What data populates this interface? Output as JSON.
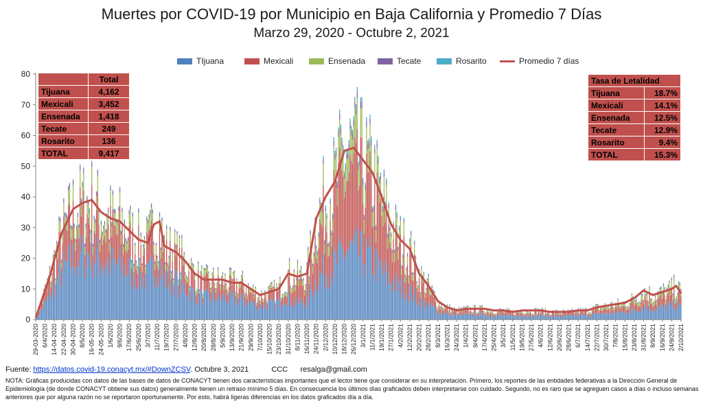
{
  "title": "Muertes por COVID-19 por Municipio en Baja California y Promedio 7 Días",
  "subtitle": "Marzo 29, 2020 - Octubre 2, 2021",
  "legend": [
    {
      "name": "TIjuana",
      "color": "#4f81bd",
      "kind": "bar"
    },
    {
      "name": "Mexicali",
      "color": "#c0504d",
      "kind": "bar"
    },
    {
      "name": "Ensenada",
      "color": "#9bbb59",
      "kind": "bar"
    },
    {
      "name": "Tecate",
      "color": "#8064a2",
      "kind": "bar"
    },
    {
      "name": "Rosarito",
      "color": "#4bacc6",
      "kind": "bar"
    },
    {
      "name": "Promedio 7 días",
      "color": "#c0504d",
      "kind": "line"
    }
  ],
  "totals_table": {
    "header": "Total",
    "rows": [
      {
        "label": "Tijuana",
        "value": "4,162"
      },
      {
        "label": "Mexicali",
        "value": "3,452"
      },
      {
        "label": "Ensenada",
        "value": "1,418"
      },
      {
        "label": "Tecate",
        "value": "249"
      },
      {
        "label": "Rosarito",
        "value": "136"
      },
      {
        "label": "TOTAL",
        "value": "9,417"
      }
    ]
  },
  "lethality_table": {
    "header": "Tasa de Letalidad",
    "rows": [
      {
        "label": "Tijuana",
        "value": "18.7%"
      },
      {
        "label": "Mexicali",
        "value": "14.1%"
      },
      {
        "label": "Ensenada",
        "value": "12.5%"
      },
      {
        "label": "Tecate",
        "value": "12.9%"
      },
      {
        "label": "Rosarito",
        "value": "9.4%"
      },
      {
        "label": "TOTAL",
        "value": "15.3%"
      }
    ]
  },
  "footer": {
    "source_label": "Fuente:",
    "source_link": "https://datos.covid-19.conacyt.mx/#DownZCSV",
    "source_date": ". Octubre 3, 2021",
    "credit": "CCC      resalga@gmail.com"
  },
  "notes": "NOTA: Gráficas producidas con datos de las bases de datos de CONACYT tienen dos características importantes que el lector tiene que considerar en su interpretación. Primero, los reportes de las entidades federativas a la Dirección General de Epidemiología (de donde CONACYT obtiene sus datos) generalmente tienen un retraso mínimo 5 días. En consecuencia los últimos días graficados deben interpretarse con cuidado. Segundo, no es raro que se agreguen casos a días o incluso semanas anteriores que por alguna razón no se reportaron oportunamente. Por esto, habrá ligeras diferencias en los datos graficados día a día.",
  "chart_data": {
    "type": "bar",
    "stacked": true,
    "ylim": [
      0,
      80
    ],
    "yticks": [
      0,
      10,
      20,
      30,
      40,
      50,
      60,
      70,
      80
    ],
    "grid": false,
    "legend_position": "top",
    "x_range": [
      "2020-03-29",
      "2021-10-02"
    ],
    "xtick_labels": [
      "29-03-2020",
      "6/4/2020",
      "14-04-2020",
      "22-04-2020",
      "30-04-2020",
      "8/5/2020",
      "16-05-2020",
      "24-05-2020",
      "1/6/2020",
      "9/6/2020",
      "17/6/2020",
      "25/6/2020",
      "3/7/2020",
      "11/7/2020",
      "19/7/2020",
      "27/7/2020",
      "4/8/2020",
      "12/8/2020",
      "20/8/2020",
      "28/8/2020",
      "5/9/2020",
      "13/9/2020",
      "21/9/2020",
      "29/9/2020",
      "7/10/2020",
      "15/10/2020",
      "23/10/2020",
      "31/10/2020",
      "8/11/2020",
      "16/11/2020",
      "24/11/2020",
      "2/12/2020",
      "10/12/2020",
      "18/12/2020",
      "26/12/2020",
      "3/1/2021",
      "11/1/2021",
      "19/1/2021",
      "27/1/2021",
      "4/2/2021",
      "12/2/2021",
      "20/2/2021",
      "28/2/2021",
      "8/3/2021",
      "16/3/2021",
      "24/3/2021",
      "1/4/2021",
      "9/4/2021",
      "17/4/2021",
      "25/4/2021",
      "3/5/2021",
      "11/5/2021",
      "19/5/2021",
      "27/5/2021",
      "4/6/2021",
      "12/6/2021",
      "20/6/2021",
      "28/6/2021",
      "6/7/2021",
      "14/7/2021",
      "22/7/2021",
      "30/7/2021",
      "7/8/2021",
      "15/8/2021",
      "23/8/2021",
      "31/8/2021",
      "8/9/2021",
      "16/9/2021",
      "24/9/2021",
      "2/10/2021"
    ],
    "series_names": [
      "TIjuana",
      "Mexicali",
      "Ensenada",
      "Tecate",
      "Rosarito"
    ],
    "series_colors": [
      "#4f81bd",
      "#c0504d",
      "#9bbb59",
      "#8064a2",
      "#4bacc6"
    ],
    "shares_by_period": {
      "2020-03-29": [
        0.55,
        0.3,
        0.11,
        0.03,
        0.01
      ],
      "2020-11-01": [
        0.4,
        0.42,
        0.13,
        0.03,
        0.02
      ],
      "2021-03-01": [
        0.45,
        0.3,
        0.18,
        0.05,
        0.02
      ]
    },
    "seven_day_average": {
      "x": [
        "2020-03-29",
        "2020-04-10",
        "2020-04-20",
        "2020-04-30",
        "2020-05-08",
        "2020-05-16",
        "2020-05-24",
        "2020-06-01",
        "2020-06-09",
        "2020-06-17",
        "2020-06-25",
        "2020-07-03",
        "2020-07-08",
        "2020-07-13",
        "2020-07-17",
        "2020-07-27",
        "2020-08-04",
        "2020-08-12",
        "2020-08-20",
        "2020-08-28",
        "2020-09-05",
        "2020-09-13",
        "2020-09-21",
        "2020-09-29",
        "2020-10-07",
        "2020-10-15",
        "2020-10-23",
        "2020-10-31",
        "2020-11-08",
        "2020-11-16",
        "2020-11-24",
        "2020-12-02",
        "2020-12-10",
        "2020-12-18",
        "2020-12-26",
        "2021-01-03",
        "2021-01-11",
        "2021-01-19",
        "2021-01-27",
        "2021-02-04",
        "2021-02-12",
        "2021-02-20",
        "2021-02-28",
        "2021-03-08",
        "2021-03-16",
        "2021-03-24",
        "2021-04-01",
        "2021-04-09",
        "2021-04-17",
        "2021-04-25",
        "2021-05-03",
        "2021-05-11",
        "2021-05-19",
        "2021-05-27",
        "2021-06-04",
        "2021-06-12",
        "2021-06-20",
        "2021-06-28",
        "2021-07-06",
        "2021-07-14",
        "2021-07-22",
        "2021-07-30",
        "2021-08-07",
        "2021-08-15",
        "2021-08-23",
        "2021-08-31",
        "2021-09-08",
        "2021-09-16",
        "2021-09-24",
        "2021-09-28",
        "2021-10-02"
      ],
      "y": [
        0.5,
        14,
        28,
        36,
        38,
        39,
        35,
        33,
        32,
        29,
        26,
        25,
        31,
        32,
        24,
        22,
        19,
        15,
        13,
        13,
        13,
        12,
        12,
        10,
        8,
        9,
        10,
        15,
        14,
        15,
        33,
        40,
        45,
        55,
        56,
        52,
        48,
        40,
        31,
        26,
        23,
        15,
        11,
        6,
        4,
        3,
        3.5,
        3.5,
        3.5,
        3,
        3,
        2.5,
        3,
        3,
        3,
        2.5,
        2.5,
        2.5,
        3,
        3,
        4,
        4.5,
        5,
        5.5,
        7,
        9.5,
        8,
        9,
        10,
        11,
        8.5
      ]
    }
  }
}
